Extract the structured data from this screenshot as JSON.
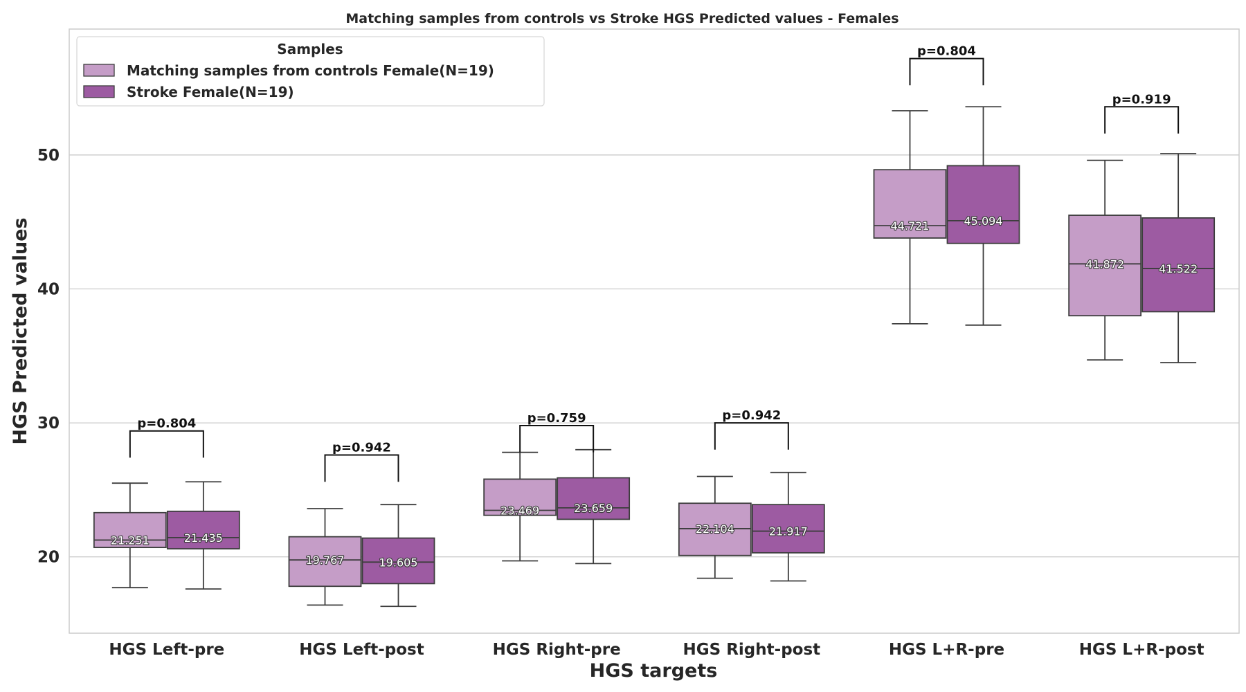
{
  "chart_data": {
    "type": "box",
    "title": "Matching samples from controls vs Stroke HGS Predicted values - Females",
    "xlabel": "HGS targets",
    "ylabel": "HGS Predicted values",
    "ylim": [
      14.3,
      59.4
    ],
    "yticks": [
      20,
      30,
      40,
      50
    ],
    "grid": true,
    "legend": {
      "title": "Samples",
      "position": "top-left",
      "entries": [
        "Matching samples from controls Female(N=19)",
        "Stroke Female(N=19)"
      ]
    },
    "colors": {
      "series_0": "#c59dc7",
      "series_1": "#9d5ba2",
      "edge": "#3d3d3d"
    },
    "categories": [
      "HGS Left-pre",
      "HGS Left-post",
      "HGS Right-pre",
      "HGS Right-post",
      "HGS L+R-pre",
      "HGS L+R-post"
    ],
    "series": [
      {
        "name": "Matching samples from controls Female(N=19)",
        "boxes": [
          {
            "whisker_low": 17.7,
            "q1": 20.7,
            "median": 21.251,
            "q3": 23.3,
            "whisker_high": 25.5,
            "median_label": "21.251"
          },
          {
            "whisker_low": 16.4,
            "q1": 17.8,
            "median": 19.767,
            "q3": 21.5,
            "whisker_high": 23.6,
            "median_label": "19.767"
          },
          {
            "whisker_low": 19.7,
            "q1": 23.1,
            "median": 23.469,
            "q3": 25.8,
            "whisker_high": 27.8,
            "median_label": "23.469"
          },
          {
            "whisker_low": 18.4,
            "q1": 20.1,
            "median": 22.104,
            "q3": 24.0,
            "whisker_high": 26.0,
            "median_label": "22.104"
          },
          {
            "whisker_low": 37.4,
            "q1": 43.8,
            "median": 44.721,
            "q3": 48.9,
            "whisker_high": 53.3,
            "median_label": "44.721"
          },
          {
            "whisker_low": 34.7,
            "q1": 38.0,
            "median": 41.872,
            "q3": 45.5,
            "whisker_high": 49.6,
            "median_label": "41.872"
          }
        ]
      },
      {
        "name": "Stroke Female(N=19)",
        "boxes": [
          {
            "whisker_low": 17.6,
            "q1": 20.6,
            "median": 21.435,
            "q3": 23.4,
            "whisker_high": 25.6,
            "median_label": "21.435"
          },
          {
            "whisker_low": 16.3,
            "q1": 18.0,
            "median": 19.605,
            "q3": 21.4,
            "whisker_high": 23.9,
            "median_label": "19.605"
          },
          {
            "whisker_low": 19.5,
            "q1": 22.8,
            "median": 23.659,
            "q3": 25.9,
            "whisker_high": 28.0,
            "median_label": "23.659"
          },
          {
            "whisker_low": 18.2,
            "q1": 20.3,
            "median": 21.917,
            "q3": 23.9,
            "whisker_high": 26.3,
            "median_label": "21.917"
          },
          {
            "whisker_low": 37.3,
            "q1": 43.4,
            "median": 45.094,
            "q3": 49.2,
            "whisker_high": 53.6,
            "median_label": "45.094"
          },
          {
            "whisker_low": 34.5,
            "q1": 38.3,
            "median": 41.522,
            "q3": 45.3,
            "whisker_high": 50.1,
            "median_label": "41.522"
          }
        ]
      }
    ],
    "annotations": [
      {
        "category": "HGS Left-pre",
        "text": "p=0.804",
        "bracket_low": 27.4,
        "bracket_top": 29.4
      },
      {
        "category": "HGS Left-post",
        "text": "p=0.942",
        "bracket_low": 25.6,
        "bracket_top": 27.6
      },
      {
        "category": "HGS Right-pre",
        "text": "p=0.759",
        "bracket_low": 27.8,
        "bracket_top": 29.8
      },
      {
        "category": "HGS Right-post",
        "text": "p=0.942",
        "bracket_low": 28.0,
        "bracket_top": 30.0
      },
      {
        "category": "HGS L+R-pre",
        "text": "p=0.804",
        "bracket_low": 55.2,
        "bracket_top": 57.2
      },
      {
        "category": "HGS L+R-post",
        "text": "p=0.919",
        "bracket_low": 51.6,
        "bracket_top": 53.6
      }
    ]
  }
}
